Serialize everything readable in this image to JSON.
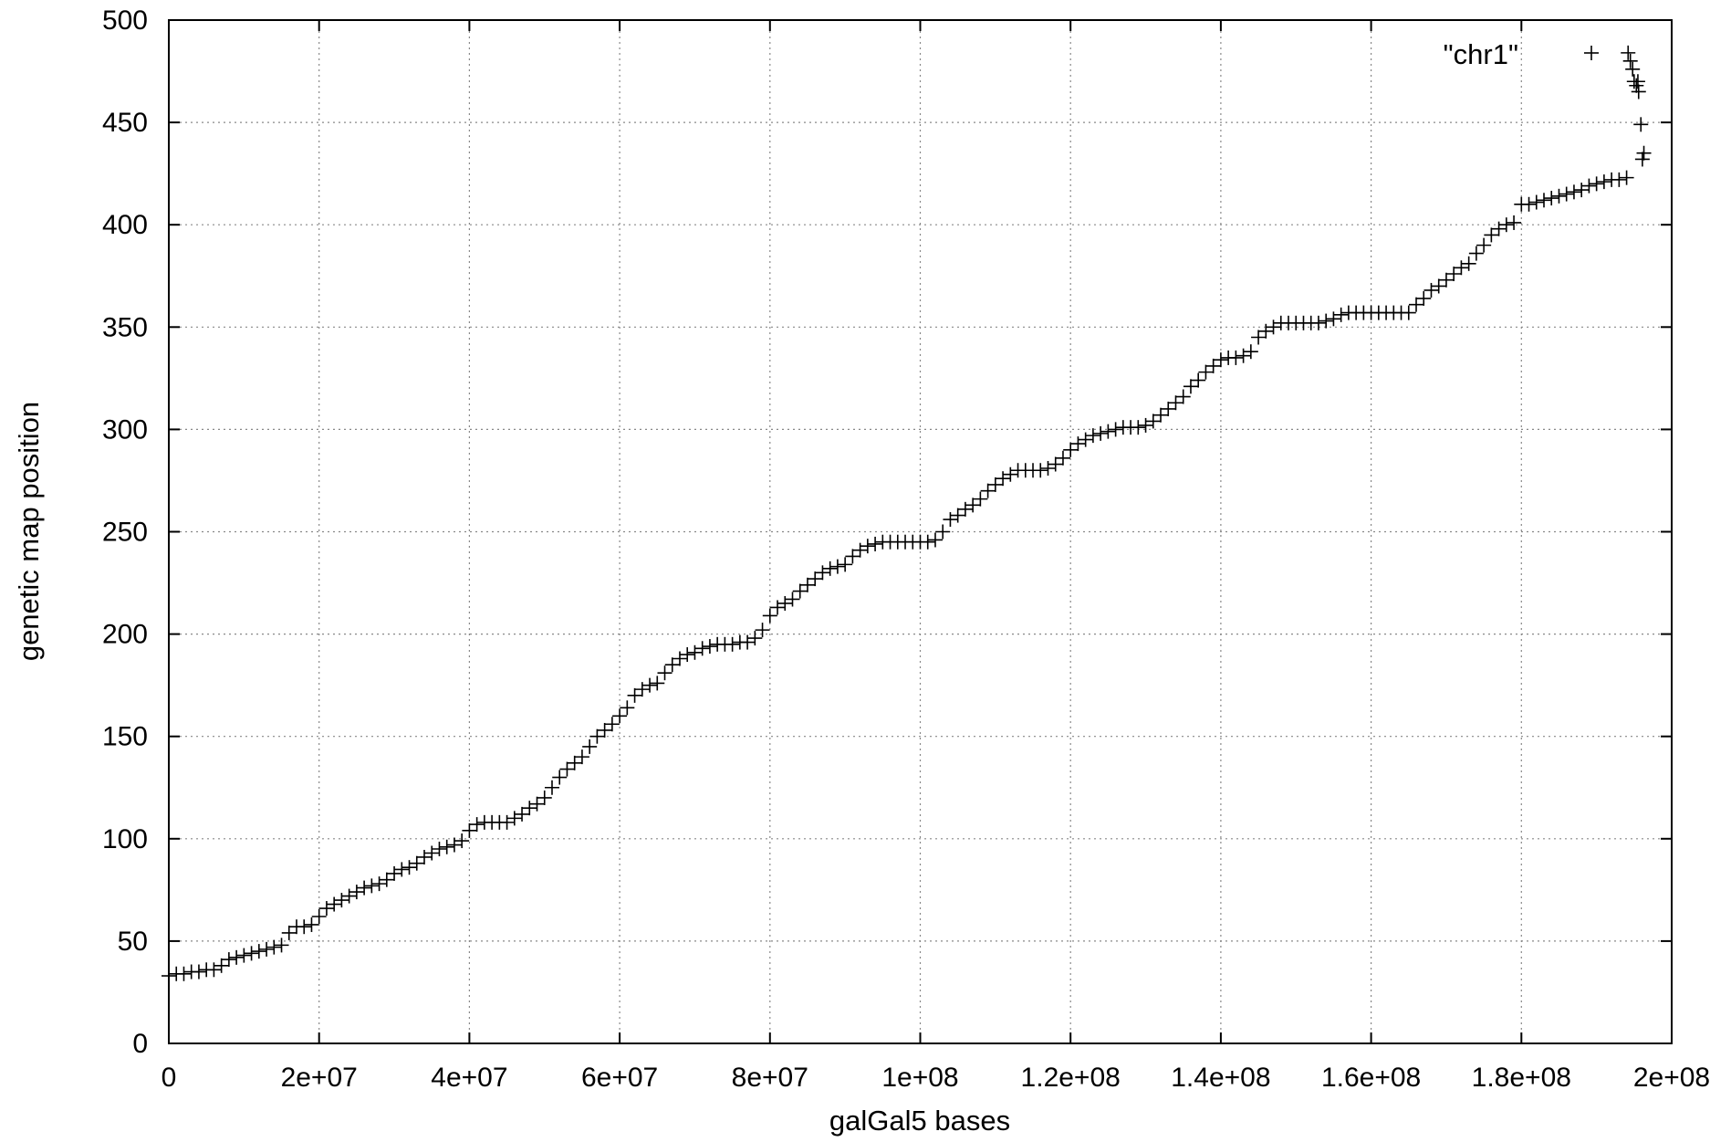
{
  "chart_data": {
    "type": "scatter",
    "xlabel": "galGal5 bases",
    "ylabel": "genetic map position",
    "xlim": [
      0,
      200000000
    ],
    "ylim": [
      0,
      500
    ],
    "xticks": [
      {
        "value": 0,
        "label": "0"
      },
      {
        "value": 20000000,
        "label": "2e+07"
      },
      {
        "value": 40000000,
        "label": "4e+07"
      },
      {
        "value": 60000000,
        "label": "6e+07"
      },
      {
        "value": 80000000,
        "label": "8e+07"
      },
      {
        "value": 100000000,
        "label": "1e+08"
      },
      {
        "value": 120000000,
        "label": "1.2e+08"
      },
      {
        "value": 140000000,
        "label": "1.4e+08"
      },
      {
        "value": 160000000,
        "label": "1.6e+08"
      },
      {
        "value": 180000000,
        "label": "1.8e+08"
      },
      {
        "value": 200000000,
        "label": "2e+08"
      }
    ],
    "yticks": [
      {
        "value": 0,
        "label": "0"
      },
      {
        "value": 50,
        "label": "50"
      },
      {
        "value": 100,
        "label": "100"
      },
      {
        "value": 150,
        "label": "150"
      },
      {
        "value": 200,
        "label": "200"
      },
      {
        "value": 250,
        "label": "250"
      },
      {
        "value": 300,
        "label": "300"
      },
      {
        "value": 350,
        "label": "350"
      },
      {
        "value": 400,
        "label": "400"
      },
      {
        "value": 450,
        "label": "450"
      },
      {
        "value": 500,
        "label": "500"
      }
    ],
    "grid": true,
    "legend_position": "top-right",
    "marker": "plus",
    "series": [
      {
        "name": "\"chr1\"",
        "color": "#000000",
        "x": [
          0,
          1000000,
          2000000,
          3000000,
          4000000,
          5000000,
          6000000,
          7000000,
          8000000,
          9000000,
          10000000,
          11000000,
          12000000,
          13000000,
          14000000,
          15000000,
          16000000,
          17000000,
          18000000,
          19000000,
          20000000,
          21000000,
          22000000,
          23000000,
          24000000,
          25000000,
          26000000,
          27000000,
          28000000,
          29000000,
          30000000,
          31000000,
          32000000,
          33000000,
          34000000,
          35000000,
          36000000,
          37000000,
          38000000,
          39000000,
          40000000,
          41000000,
          42000000,
          43000000,
          44000000,
          45000000,
          46000000,
          47000000,
          48000000,
          49000000,
          50000000,
          51000000,
          52000000,
          53000000,
          54000000,
          55000000,
          56000000,
          57000000,
          58000000,
          59000000,
          60000000,
          61000000,
          62000000,
          63000000,
          64000000,
          65000000,
          66000000,
          67000000,
          68000000,
          69000000,
          70000000,
          71000000,
          72000000,
          73000000,
          74000000,
          75000000,
          76000000,
          77000000,
          78000000,
          79000000,
          80000000,
          81000000,
          82000000,
          83000000,
          84000000,
          85000000,
          86000000,
          87000000,
          88000000,
          89000000,
          90000000,
          91000000,
          92000000,
          93000000,
          94000000,
          95000000,
          96000000,
          97000000,
          98000000,
          99000000,
          100000000,
          101000000,
          102000000,
          103000000,
          104000000,
          105000000,
          106000000,
          107000000,
          108000000,
          109000000,
          110000000,
          111000000,
          112000000,
          113000000,
          114000000,
          115000000,
          116000000,
          117000000,
          118000000,
          119000000,
          120000000,
          121000000,
          122000000,
          123000000,
          124000000,
          125000000,
          126000000,
          127000000,
          128000000,
          129000000,
          130000000,
          131000000,
          132000000,
          133000000,
          134000000,
          135000000,
          136000000,
          137000000,
          138000000,
          139000000,
          140000000,
          141000000,
          142000000,
          143000000,
          144000000,
          145000000,
          146000000,
          147000000,
          148000000,
          149000000,
          150000000,
          151000000,
          152000000,
          153000000,
          154000000,
          155000000,
          156000000,
          157000000,
          158000000,
          159000000,
          160000000,
          161000000,
          162000000,
          163000000,
          164000000,
          165000000,
          166000000,
          167000000,
          168000000,
          169000000,
          170000000,
          171000000,
          172000000,
          173000000,
          174000000,
          175000000,
          176000000,
          177000000,
          178000000,
          179000000,
          180000000,
          181000000,
          182000000,
          183000000,
          184000000,
          185000000,
          186000000,
          187000000,
          188000000,
          189000000,
          190000000,
          191000000,
          192000000,
          193000000,
          194000000,
          194200000,
          194500000,
          194800000,
          195000000,
          195300000,
          195600000,
          195900000,
          196100000,
          196300000,
          195500000
        ],
        "y": [
          33,
          34,
          34,
          35,
          35,
          36,
          36,
          38,
          41,
          42,
          43,
          44,
          45,
          46,
          47,
          48,
          54,
          57,
          57,
          58,
          62,
          66,
          68,
          70,
          72,
          74,
          76,
          77,
          78,
          80,
          83,
          85,
          86,
          88,
          91,
          93,
          95,
          96,
          97,
          99,
          104,
          107,
          108,
          108,
          108,
          108,
          110,
          112,
          115,
          117,
          120,
          125,
          130,
          134,
          137,
          140,
          145,
          150,
          153,
          156,
          160,
          164,
          170,
          173,
          175,
          176,
          181,
          185,
          188,
          190,
          191,
          193,
          194,
          195,
          195,
          195,
          196,
          196,
          198,
          202,
          209,
          213,
          215,
          217,
          221,
          224,
          227,
          230,
          232,
          233,
          234,
          238,
          241,
          243,
          244,
          245,
          245,
          245,
          245,
          245,
          245,
          245,
          246,
          250,
          256,
          258,
          261,
          263,
          266,
          270,
          273,
          276,
          278,
          280,
          280,
          280,
          280,
          281,
          283,
          286,
          290,
          293,
          295,
          297,
          298,
          299,
          300,
          301,
          301,
          301,
          302,
          304,
          307,
          310,
          313,
          316,
          321,
          324,
          328,
          331,
          334,
          335,
          335,
          336,
          338,
          345,
          348,
          350,
          352,
          352,
          352,
          352,
          352,
          352,
          353,
          354,
          356,
          357,
          357,
          357,
          357,
          357,
          357,
          357,
          357,
          357,
          361,
          364,
          368,
          370,
          373,
          376,
          379,
          381,
          386,
          390,
          395,
          398,
          400,
          401,
          410,
          410,
          411,
          412,
          413,
          414,
          415,
          416,
          417,
          419,
          420,
          421,
          422,
          422,
          423,
          484,
          480,
          476,
          470,
          468,
          465,
          449,
          432,
          435,
          470
        ]
      }
    ]
  }
}
